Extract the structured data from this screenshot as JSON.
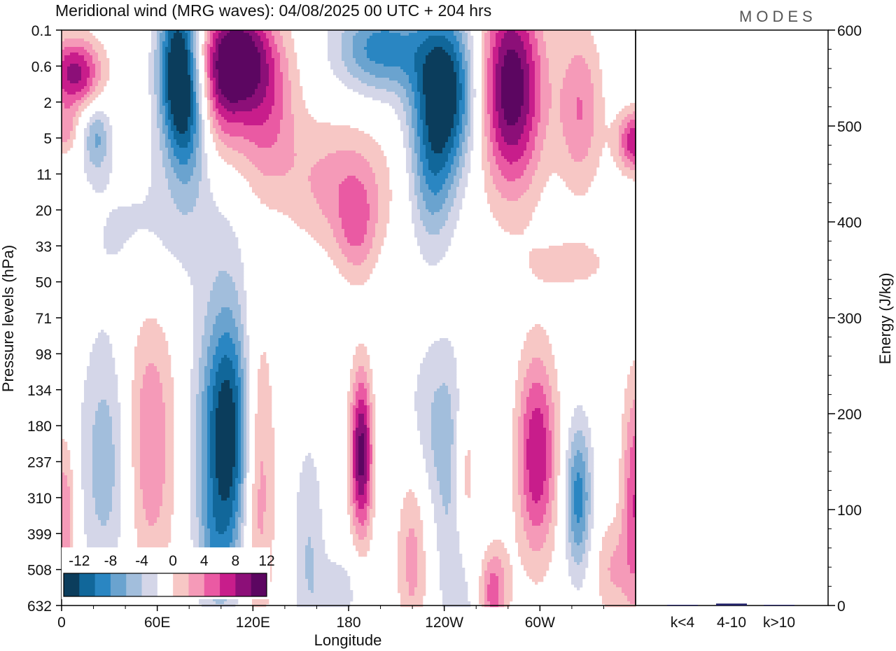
{
  "chart_data": [
    {
      "type": "heatmap",
      "title": "Meridional wind (MRG waves):  04/08/2025  00 UTC  + 204 hrs",
      "brand": "MODES",
      "xlabel": "Longitude",
      "ylabel": "Pressure levels (hPa)",
      "x_ticks": [
        "0",
        "60E",
        "120E",
        "180",
        "120W",
        "60W"
      ],
      "x_range": [
        0,
        360
      ],
      "y_ticks": [
        "0.1",
        "0.6",
        "2",
        "5",
        "11",
        "20",
        "33",
        "50",
        "71",
        "98",
        "134",
        "180",
        "237",
        "310",
        "399",
        "508",
        "632"
      ],
      "y_direction": "down",
      "colorbar": {
        "tick_labels": [
          "-12",
          "-8",
          "-4",
          "0",
          "4",
          "8",
          "12"
        ],
        "bins": [
          -14,
          -12,
          -10,
          -8,
          -6,
          -4,
          -2,
          2,
          4,
          6,
          8,
          10,
          12,
          14
        ],
        "colors": [
          "#0b3d5c",
          "#11679a",
          "#2a86c2",
          "#6aa3cf",
          "#a2bedc",
          "#d4d6e8",
          "#ffffff",
          "#f7c7c5",
          "#f59ab8",
          "#ea5aa3",
          "#c81d8b",
          "#8c0f78",
          "#5c0661"
        ],
        "placement": "bottom-left"
      },
      "features": [
        {
          "lon": 73,
          "level": 1,
          "value": -14,
          "sx": 9,
          "sy": 1.6
        },
        {
          "lon": 110,
          "level": 0.7,
          "value": 13,
          "sx": 16,
          "sy": 1.1
        },
        {
          "lon": 8,
          "level": 1.2,
          "value": 11,
          "sx": 12,
          "sy": 0.7
        },
        {
          "lon": 128,
          "level": 2.4,
          "value": 6,
          "sx": 14,
          "sy": 1.5
        },
        {
          "lon": 100,
          "level": 2.0,
          "value": 5,
          "sx": 10,
          "sy": 1.2
        },
        {
          "lon": 200,
          "level": 0.5,
          "value": -9,
          "sx": 20,
          "sy": 0.9
        },
        {
          "lon": 240,
          "level": 1.7,
          "value": -14,
          "sx": 14,
          "sy": 1.6
        },
        {
          "lon": 232,
          "level": 4.2,
          "value": -6,
          "sx": 10,
          "sy": 1.5
        },
        {
          "lon": 282,
          "level": 1.6,
          "value": 14,
          "sx": 14,
          "sy": 2.0
        },
        {
          "lon": 325,
          "level": 2.2,
          "value": 6,
          "sx": 10,
          "sy": 1.6
        },
        {
          "lon": 360,
          "level": 3.1,
          "value": 10,
          "sx": 8,
          "sy": 0.6
        },
        {
          "lon": 2,
          "level": 2.8,
          "value": 5,
          "sx": 5,
          "sy": 0.5
        },
        {
          "lon": 22,
          "level": 3.0,
          "value": -6,
          "sx": 6,
          "sy": 0.7
        },
        {
          "lon": 60,
          "level": 5.5,
          "value": -2.6,
          "sx": 40,
          "sy": 1.5
        },
        {
          "lon": 80,
          "level": 2.5,
          "value": -6,
          "sx": 9,
          "sy": 1.5
        },
        {
          "lon": 175,
          "level": 4.3,
          "value": 5,
          "sx": 25,
          "sy": 1.3
        },
        {
          "lon": 185,
          "level": 5.6,
          "value": 4.5,
          "sx": 9,
          "sy": 1.0
        },
        {
          "lon": 320,
          "level": 6.5,
          "value": 2.6,
          "sx": 22,
          "sy": 0.6
        },
        {
          "lon": 105,
          "level": 11.3,
          "value": -15,
          "sx": 13,
          "sy": 2.6
        },
        {
          "lon": 122,
          "level": 12.0,
          "value": 9,
          "sx": 8,
          "sy": 3.0
        },
        {
          "lon": 55,
          "level": 11.5,
          "value": 6,
          "sx": 12,
          "sy": 2.8
        },
        {
          "lon": 28,
          "level": 12.0,
          "value": -5.5,
          "sx": 12,
          "sy": 2.5
        },
        {
          "lon": 188,
          "level": 11.8,
          "value": 13,
          "sx": 5,
          "sy": 1.6
        },
        {
          "lon": 254,
          "level": 12.5,
          "value": 9,
          "sx": 6,
          "sy": 2.0
        },
        {
          "lon": 298,
          "level": 11.8,
          "value": 10,
          "sx": 9,
          "sy": 2.0
        },
        {
          "lon": 324,
          "level": 13.0,
          "value": -9,
          "sx": 6,
          "sy": 1.5
        },
        {
          "lon": 360,
          "level": 13.0,
          "value": 8,
          "sx": 6,
          "sy": 2.3
        },
        {
          "lon": 2,
          "level": 13.5,
          "value": 6,
          "sx": 5,
          "sy": 1.6
        },
        {
          "lon": 155,
          "level": 14.5,
          "value": -4,
          "sx": 7,
          "sy": 2.3
        },
        {
          "lon": 220,
          "level": 14.5,
          "value": 5,
          "sx": 7,
          "sy": 2.0
        },
        {
          "lon": 252,
          "level": 14.5,
          "value": -6,
          "sx": 10,
          "sy": 2.6
        },
        {
          "lon": 270,
          "level": 15.6,
          "value": 8,
          "sx": 7,
          "sy": 1.0
        },
        {
          "lon": 240,
          "level": 11.0,
          "value": -4.5,
          "sx": 18,
          "sy": 1.8
        },
        {
          "lon": 175,
          "level": 15.6,
          "value": -3,
          "sx": 10,
          "sy": 0.8
        },
        {
          "lon": 345,
          "level": 15.0,
          "value": 4,
          "sx": 8,
          "sy": 1.0
        },
        {
          "lon": 95,
          "level": 14.6,
          "value": -3,
          "sx": 8,
          "sy": 1.2
        }
      ]
    },
    {
      "type": "bar",
      "categories": [
        "k<4",
        "4-10",
        "k>10"
      ],
      "values": [
        0,
        2,
        0
      ],
      "ylabel": "Energy (J/kg)",
      "ylim": [
        0,
        600
      ],
      "y_ticks": [
        0,
        100,
        200,
        300,
        400,
        500,
        600
      ],
      "bar_color": "#1f1f66"
    }
  ]
}
